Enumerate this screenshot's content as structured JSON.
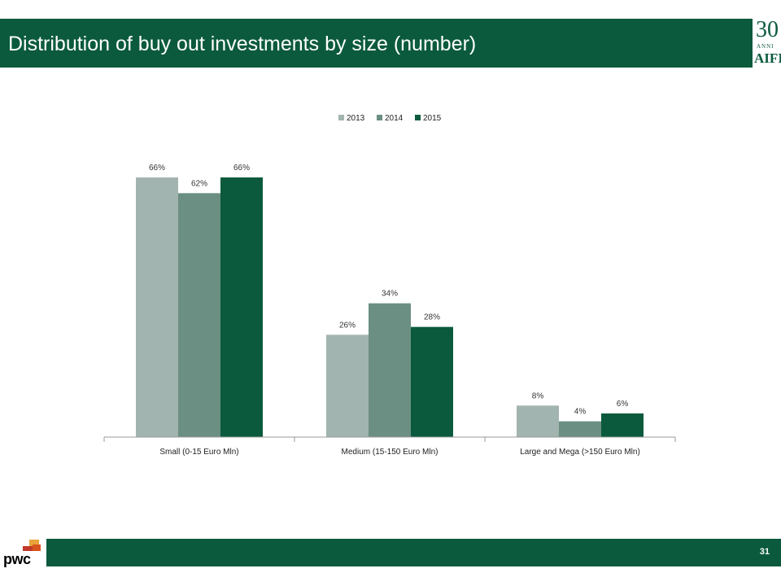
{
  "header": {
    "title": "Distribution of buy out investments by size (number)",
    "logo_number": "30",
    "logo_sub": "ANNI",
    "logo_name": "AIFI"
  },
  "footer": {
    "page_number": "31",
    "brand": "pwc"
  },
  "colors": {
    "header_green": "#0b5a3d",
    "series_2013": "#a2b4af",
    "series_2014": "#6b8f82",
    "series_2015": "#0b5a3d"
  },
  "chart_data": {
    "type": "bar",
    "title": "",
    "xlabel": "",
    "ylabel": "",
    "categories": [
      "Small (0-15 Euro Mln)",
      "Medium (15-150 Euro Mln)",
      "Large and Mega (>150 Euro Mln)"
    ],
    "series": [
      {
        "name": "2013",
        "values": [
          66,
          26,
          8
        ],
        "labels": [
          "66%",
          "26%",
          "8%"
        ],
        "color": "#a2b4af"
      },
      {
        "name": "2014",
        "values": [
          62,
          34,
          4
        ],
        "labels": [
          "62%",
          "34%",
          "4%"
        ],
        "color": "#6b8f82"
      },
      {
        "name": "2015",
        "values": [
          66,
          28,
          6
        ],
        "labels": [
          "66%",
          "28%",
          "6%"
        ],
        "color": "#0b5a3d"
      }
    ],
    "ylim": [
      0,
      66
    ],
    "grid": false,
    "legend_position": "top"
  }
}
